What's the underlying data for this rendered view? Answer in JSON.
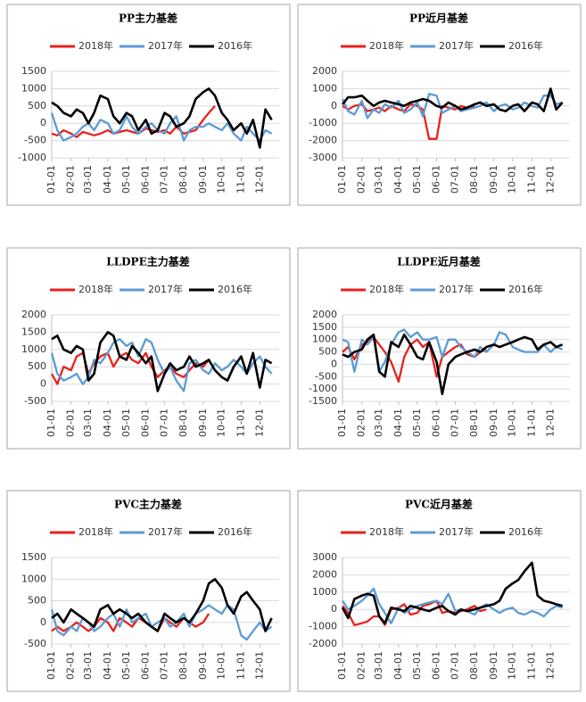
{
  "chart_data": [
    {
      "type": "line",
      "title": "PP主力基差",
      "x": [
        "01-01",
        "01-10",
        "01-20",
        "02-01",
        "02-10",
        "02-20",
        "03-01",
        "03-10",
        "03-20",
        "04-01",
        "04-10",
        "04-20",
        "05-01",
        "05-10",
        "05-20",
        "06-01",
        "06-10",
        "06-20",
        "07-01",
        "07-10",
        "07-20",
        "08-01",
        "08-10",
        "08-20",
        "09-01",
        "09-10",
        "09-20",
        "10-01",
        "10-10",
        "10-20",
        "11-01",
        "11-10",
        "11-20",
        "12-01",
        "12-10",
        "12-20"
      ],
      "xticks": [
        "01-01",
        "02-01",
        "03-01",
        "04-01",
        "05-01",
        "06-01",
        "07-01",
        "08-01",
        "09-01",
        "10-01",
        "11-01",
        "12-01"
      ],
      "ylim": [
        -1000,
        1500
      ],
      "yticks": [
        -1000,
        -500,
        0,
        500,
        1000,
        1500
      ],
      "grid": true,
      "series": [
        {
          "name": "2018年",
          "color": "#e8211d",
          "values": [
            -300,
            -350,
            -200,
            -300,
            -400,
            -250,
            -300,
            -350,
            -300,
            -200,
            -300,
            -250,
            -200,
            -250,
            -300,
            -150,
            -200,
            -250,
            -200,
            -300,
            -100,
            -300,
            -250,
            -200,
            100,
            300,
            500,
            null,
            null,
            null,
            null,
            null,
            null,
            null,
            null,
            null
          ]
        },
        {
          "name": "2017年",
          "color": "#5b9bd5",
          "values": [
            300,
            -200,
            -500,
            -400,
            -300,
            -100,
            0,
            -200,
            100,
            0,
            -300,
            -200,
            200,
            -100,
            -300,
            -100,
            0,
            -200,
            -300,
            0,
            200,
            -500,
            -200,
            -100,
            -100,
            0,
            -100,
            -200,
            0,
            -300,
            -500,
            -100,
            -300,
            -500,
            -200,
            -300
          ]
        },
        {
          "name": "2016年",
          "color": "#000000",
          "values": [
            600,
            500,
            300,
            200,
            400,
            300,
            0,
            300,
            800,
            700,
            200,
            0,
            300,
            200,
            -200,
            100,
            -300,
            -200,
            300,
            200,
            -100,
            0,
            200,
            700,
            900,
            1000,
            800,
            300,
            100,
            -200,
            0,
            -300,
            100,
            -700,
            400,
            100
          ]
        }
      ]
    },
    {
      "type": "line",
      "title": "PP近月基差",
      "x": [
        "01-01",
        "01-10",
        "01-20",
        "02-01",
        "02-10",
        "02-20",
        "03-01",
        "03-10",
        "03-20",
        "04-01",
        "04-10",
        "04-20",
        "05-01",
        "05-10",
        "05-20",
        "06-01",
        "06-10",
        "06-20",
        "07-01",
        "07-10",
        "07-20",
        "08-01",
        "08-10",
        "08-20",
        "09-01",
        "09-10",
        "09-20",
        "10-01",
        "10-10",
        "10-20",
        "11-01",
        "11-10",
        "11-20",
        "12-01",
        "12-10",
        "12-20"
      ],
      "xticks": [
        "01-01",
        "02-01",
        "03-01",
        "04-01",
        "05-01",
        "06-01",
        "07-01",
        "08-01",
        "09-01",
        "10-01",
        "11-01",
        "12-01"
      ],
      "ylim": [
        -3000,
        2000
      ],
      "yticks": [
        -3000,
        -2000,
        -1000,
        0,
        1000,
        2000
      ],
      "grid": true,
      "series": [
        {
          "name": "2018年",
          "color": "#e8211d",
          "values": [
            0,
            -200,
            0,
            100,
            -300,
            -200,
            -100,
            -300,
            0,
            -200,
            -300,
            100,
            0,
            -200,
            -1900,
            -1900,
            0,
            -100,
            -200,
            0,
            -100,
            0,
            null,
            null,
            null,
            null,
            null,
            null,
            null,
            null,
            null,
            null,
            null,
            null,
            null,
            null
          ]
        },
        {
          "name": "2017年",
          "color": "#5b9bd5",
          "values": [
            400,
            -300,
            -500,
            300,
            -700,
            -200,
            -400,
            100,
            -100,
            300,
            -400,
            -200,
            200,
            -600,
            700,
            600,
            -400,
            -200,
            0,
            -300,
            -200,
            -100,
            0,
            200,
            -300,
            0,
            100,
            -200,
            -100,
            200,
            0,
            -100,
            600,
            600,
            100,
            200
          ]
        },
        {
          "name": "2016年",
          "color": "#000000",
          "values": [
            100,
            500,
            500,
            600,
            300,
            0,
            200,
            300,
            200,
            100,
            0,
            200,
            300,
            400,
            300,
            0,
            -100,
            200,
            0,
            -200,
            -100,
            100,
            200,
            0,
            100,
            -200,
            -300,
            0,
            100,
            -300,
            200,
            100,
            -300,
            1000,
            -200,
            200
          ]
        }
      ]
    },
    {
      "type": "line",
      "title": "LLDPE主力基差",
      "x": [
        "01-01",
        "01-10",
        "01-20",
        "02-01",
        "02-10",
        "02-20",
        "03-01",
        "03-10",
        "03-20",
        "04-01",
        "04-10",
        "04-20",
        "05-01",
        "05-10",
        "05-20",
        "06-01",
        "06-10",
        "06-20",
        "07-01",
        "07-10",
        "07-20",
        "08-01",
        "08-10",
        "08-20",
        "09-01",
        "09-10",
        "09-20",
        "10-01",
        "10-10",
        "10-20",
        "11-01",
        "11-10",
        "11-20",
        "12-01",
        "12-10",
        "12-20"
      ],
      "xticks": [
        "01-01",
        "02-01",
        "03-01",
        "04-01",
        "05-01",
        "06-01",
        "07-01",
        "08-01",
        "09-01",
        "10-01",
        "11-01",
        "12-01"
      ],
      "ylim": [
        -500,
        2000
      ],
      "yticks": [
        -500,
        0,
        500,
        1000,
        1500,
        2000
      ],
      "grid": true,
      "series": [
        {
          "name": "2018年",
          "color": "#e8211d",
          "values": [
            300,
            0,
            500,
            400,
            800,
            900,
            300,
            600,
            800,
            900,
            500,
            800,
            900,
            700,
            600,
            900,
            500,
            200,
            400,
            500,
            300,
            200,
            400,
            600,
            500,
            700,
            null,
            null,
            null,
            null,
            null,
            null,
            null,
            null,
            null,
            null
          ]
        },
        {
          "name": "2017年",
          "color": "#5b9bd5",
          "values": [
            900,
            300,
            100,
            200,
            300,
            0,
            200,
            700,
            600,
            900,
            1200,
            1300,
            1100,
            1200,
            800,
            1300,
            1200,
            700,
            300,
            500,
            100,
            -200,
            600,
            700,
            400,
            300,
            600,
            400,
            500,
            700,
            500,
            300,
            600,
            800,
            500,
            300
          ]
        },
        {
          "name": "2016年",
          "color": "#000000",
          "values": [
            1300,
            1400,
            1000,
            900,
            1100,
            1000,
            100,
            300,
            1200,
            1500,
            1400,
            800,
            700,
            1100,
            900,
            600,
            800,
            -200,
            300,
            600,
            400,
            500,
            800,
            500,
            600,
            700,
            400,
            200,
            100,
            500,
            800,
            300,
            900,
            -100,
            700,
            600
          ]
        }
      ]
    },
    {
      "type": "line",
      "title": "LLDPE近月基差",
      "x": [
        "01-01",
        "01-10",
        "01-20",
        "02-01",
        "02-10",
        "02-20",
        "03-01",
        "03-10",
        "03-20",
        "04-01",
        "04-10",
        "04-20",
        "05-01",
        "05-10",
        "05-20",
        "06-01",
        "06-10",
        "06-20",
        "07-01",
        "07-10",
        "07-20",
        "08-01",
        "08-10",
        "08-20",
        "09-01",
        "09-10",
        "09-20",
        "10-01",
        "10-10",
        "10-20",
        "11-01",
        "11-10",
        "11-20",
        "12-01",
        "12-10",
        "12-20"
      ],
      "xticks": [
        "01-01",
        "02-01",
        "03-01",
        "04-01",
        "05-01",
        "06-01",
        "07-01",
        "08-01",
        "09-01",
        "10-01",
        "11-01",
        "12-01"
      ],
      "ylim": [
        -1500,
        2000
      ],
      "yticks": [
        -1500,
        -1000,
        -500,
        0,
        500,
        1000,
        1500,
        2000
      ],
      "grid": true,
      "series": [
        {
          "name": "2018年",
          "color": "#e8211d",
          "values": [
            500,
            700,
            200,
            800,
            900,
            1100,
            800,
            500,
            100,
            -700,
            300,
            800,
            1000,
            700,
            900,
            -500,
            300,
            500,
            700,
            800,
            400,
            300,
            500,
            600,
            null,
            null,
            null,
            null,
            null,
            null,
            null,
            null,
            null,
            null,
            null,
            null
          ]
        },
        {
          "name": "2017年",
          "color": "#5b9bd5",
          "values": [
            1000,
            900,
            -300,
            1000,
            800,
            1100,
            -300,
            100,
            800,
            1300,
            1400,
            1100,
            1300,
            1000,
            1000,
            1100,
            300,
            1000,
            1000,
            700,
            500,
            300,
            700,
            500,
            800,
            1300,
            1200,
            700,
            600,
            500,
            500,
            500,
            800,
            500,
            700,
            600
          ]
        },
        {
          "name": "2016年",
          "color": "#000000",
          "values": [
            400,
            300,
            500,
            600,
            1000,
            1200,
            -300,
            -500,
            900,
            700,
            1200,
            800,
            300,
            200,
            900,
            100,
            -1200,
            0,
            300,
            400,
            500,
            600,
            500,
            700,
            800,
            700,
            800,
            900,
            1000,
            1100,
            1000,
            600,
            800,
            900,
            700,
            800
          ]
        }
      ]
    },
    {
      "type": "line",
      "title": "PVC主力基差",
      "x": [
        "01-01",
        "01-10",
        "01-20",
        "02-01",
        "02-10",
        "02-20",
        "03-01",
        "03-10",
        "03-20",
        "04-01",
        "04-10",
        "04-20",
        "05-01",
        "05-10",
        "05-20",
        "06-01",
        "06-10",
        "06-20",
        "07-01",
        "07-10",
        "07-20",
        "08-01",
        "08-10",
        "08-20",
        "09-01",
        "09-10",
        "09-20",
        "10-01",
        "10-10",
        "10-20",
        "11-01",
        "11-10",
        "11-20",
        "12-01",
        "12-10",
        "12-20"
      ],
      "xticks": [
        "01-01",
        "02-01",
        "03-01",
        "04-01",
        "05-01",
        "06-01",
        "07-01",
        "08-01",
        "09-01",
        "10-01",
        "11-01",
        "12-01"
      ],
      "ylim": [
        -500,
        1500
      ],
      "yticks": [
        -500,
        0,
        500,
        1000,
        1500
      ],
      "grid": true,
      "series": [
        {
          "name": "2018年",
          "color": "#e8211d",
          "values": [
            -200,
            -100,
            -200,
            -100,
            0,
            -100,
            -200,
            -100,
            100,
            0,
            -200,
            100,
            0,
            -100,
            100,
            0,
            -100,
            -200,
            100,
            0,
            -100,
            100,
            0,
            -100,
            0,
            200,
            null,
            null,
            null,
            null,
            null,
            null,
            null,
            null,
            null,
            null
          ]
        },
        {
          "name": "2017年",
          "color": "#5b9bd5",
          "values": [
            300,
            -200,
            -300,
            -100,
            -200,
            100,
            0,
            -200,
            -100,
            100,
            200,
            -100,
            300,
            0,
            100,
            200,
            -100,
            0,
            100,
            -100,
            0,
            200,
            -100,
            200,
            300,
            400,
            300,
            200,
            400,
            300,
            -300,
            -400,
            -200,
            0,
            -200,
            -100
          ]
        },
        {
          "name": "2016年",
          "color": "#000000",
          "values": [
            100,
            200,
            0,
            300,
            200,
            100,
            0,
            -100,
            300,
            400,
            200,
            300,
            200,
            100,
            200,
            0,
            -100,
            -200,
            200,
            100,
            0,
            100,
            0,
            200,
            500,
            900,
            1000,
            800,
            400,
            200,
            600,
            700,
            500,
            300,
            -200,
            100
          ]
        }
      ]
    },
    {
      "type": "line",
      "title": "PVC近月基差",
      "x": [
        "01-01",
        "01-10",
        "01-20",
        "02-01",
        "02-10",
        "02-20",
        "03-01",
        "03-10",
        "03-20",
        "04-01",
        "04-10",
        "04-20",
        "05-01",
        "05-10",
        "05-20",
        "06-01",
        "06-10",
        "06-20",
        "07-01",
        "07-10",
        "07-20",
        "08-01",
        "08-10",
        "08-20",
        "09-01",
        "09-10",
        "09-20",
        "10-01",
        "10-10",
        "10-20",
        "11-01",
        "11-10",
        "11-20",
        "12-01",
        "12-10",
        "12-20"
      ],
      "xticks": [
        "01-01",
        "02-01",
        "03-01",
        "04-01",
        "05-01",
        "06-01",
        "07-01",
        "08-01",
        "09-01",
        "10-01",
        "11-01",
        "12-01"
      ],
      "ylim": [
        -2000,
        3000
      ],
      "yticks": [
        -2000,
        -1000,
        0,
        1000,
        2000,
        3000
      ],
      "grid": true,
      "series": [
        {
          "name": "2018年",
          "color": "#e8211d",
          "values": [
            200,
            -200,
            -900,
            -800,
            -700,
            -400,
            -400,
            -900,
            0,
            100,
            300,
            -300,
            -200,
            200,
            300,
            500,
            -200,
            -100,
            -200,
            -100,
            0,
            200,
            -100,
            0,
            null,
            null,
            null,
            null,
            null,
            null,
            null,
            null,
            null,
            null,
            null,
            null
          ]
        },
        {
          "name": "2017年",
          "color": "#5b9bd5",
          "values": [
            500,
            0,
            200,
            500,
            800,
            1200,
            300,
            -200,
            -800,
            100,
            -200,
            0,
            200,
            300,
            400,
            500,
            300,
            900,
            -100,
            0,
            -100,
            -300,
            100,
            300,
            0,
            -200,
            0,
            100,
            -200,
            -300,
            -100,
            -200,
            -400,
            0,
            200,
            100
          ]
        },
        {
          "name": "2016年",
          "color": "#000000",
          "values": [
            100,
            -500,
            600,
            800,
            900,
            800,
            -400,
            -800,
            100,
            0,
            -100,
            200,
            100,
            0,
            -100,
            100,
            200,
            -100,
            -300,
            0,
            -100,
            0,
            100,
            200,
            300,
            500,
            1200,
            1500,
            1700,
            2200,
            2700,
            800,
            500,
            400,
            300,
            200
          ]
        }
      ]
    }
  ]
}
